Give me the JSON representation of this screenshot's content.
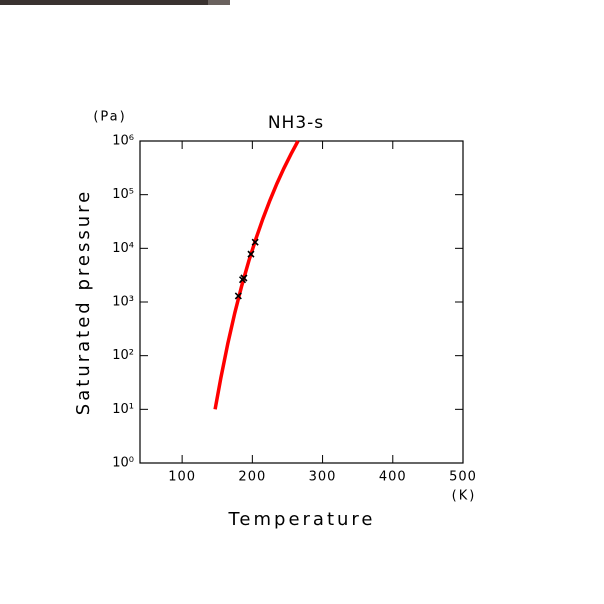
{
  "chart_data": {
    "type": "line",
    "title": "NH3-s",
    "x_label": "Temperature",
    "y_label": "Saturated pressure",
    "x_unit": "(K)",
    "y_unit": "(Pa)",
    "xlim": [
      40,
      500
    ],
    "xticks": [
      100,
      200,
      300,
      400,
      500
    ],
    "ylim": [
      1,
      1000000
    ],
    "yticks": [
      {
        "value": 1,
        "label": "10⁰"
      },
      {
        "value": 10,
        "label": "10¹"
      },
      {
        "value": 100,
        "label": "10²"
      },
      {
        "value": 1000,
        "label": "10³"
      },
      {
        "value": 10000,
        "label": "10⁴"
      },
      {
        "value": 100000,
        "label": "10⁵"
      },
      {
        "value": 1000000,
        "label": "10⁶"
      }
    ],
    "y_log": true,
    "series": [
      {
        "color": "#ff0000",
        "x": [
          147,
          155,
          165,
          175,
          185,
          195,
          205,
          215,
          225,
          235,
          245,
          255,
          265
        ],
        "values": [
          10,
          38,
          168,
          626,
          2026,
          5810,
          15040,
          35630,
          78200,
          160500,
          310000,
          570000,
          1000000
        ]
      }
    ],
    "points": {
      "color": "#000000",
      "x": [
        180,
        186,
        188,
        198,
        204
      ],
      "values": [
        1300,
        2600,
        2800,
        7800,
        13000
      ]
    }
  }
}
